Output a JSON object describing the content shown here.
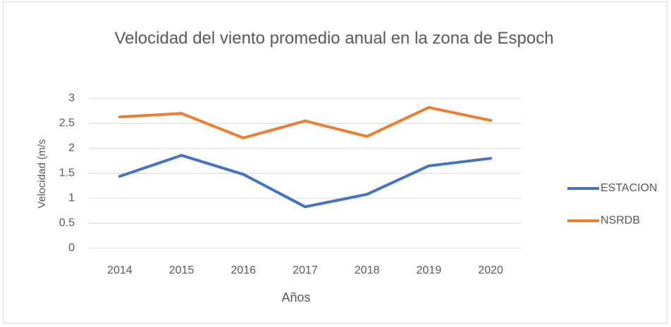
{
  "chart_data": {
    "type": "line",
    "title": "Velocidad del viento promedio anual en la zona de Espoch",
    "x_label": "Años",
    "y_label": "Velocidad  (m/s",
    "categories": [
      "2014",
      "2015",
      "2016",
      "2017",
      "2018",
      "2019",
      "2020"
    ],
    "series": [
      {
        "name": "ESTACION",
        "color": "#4472c4",
        "values": [
          1.44,
          1.86,
          1.48,
          0.83,
          1.08,
          1.65,
          1.8
        ]
      },
      {
        "name": "NSRDB",
        "color": "#ed7d31",
        "values": [
          2.63,
          2.7,
          2.21,
          2.55,
          2.24,
          2.82,
          2.56
        ]
      }
    ],
    "ylim": [
      0,
      3
    ],
    "yticks": [
      0,
      0.5,
      1,
      1.5,
      2,
      2.5,
      3
    ],
    "grid": true,
    "legend": "right"
  }
}
